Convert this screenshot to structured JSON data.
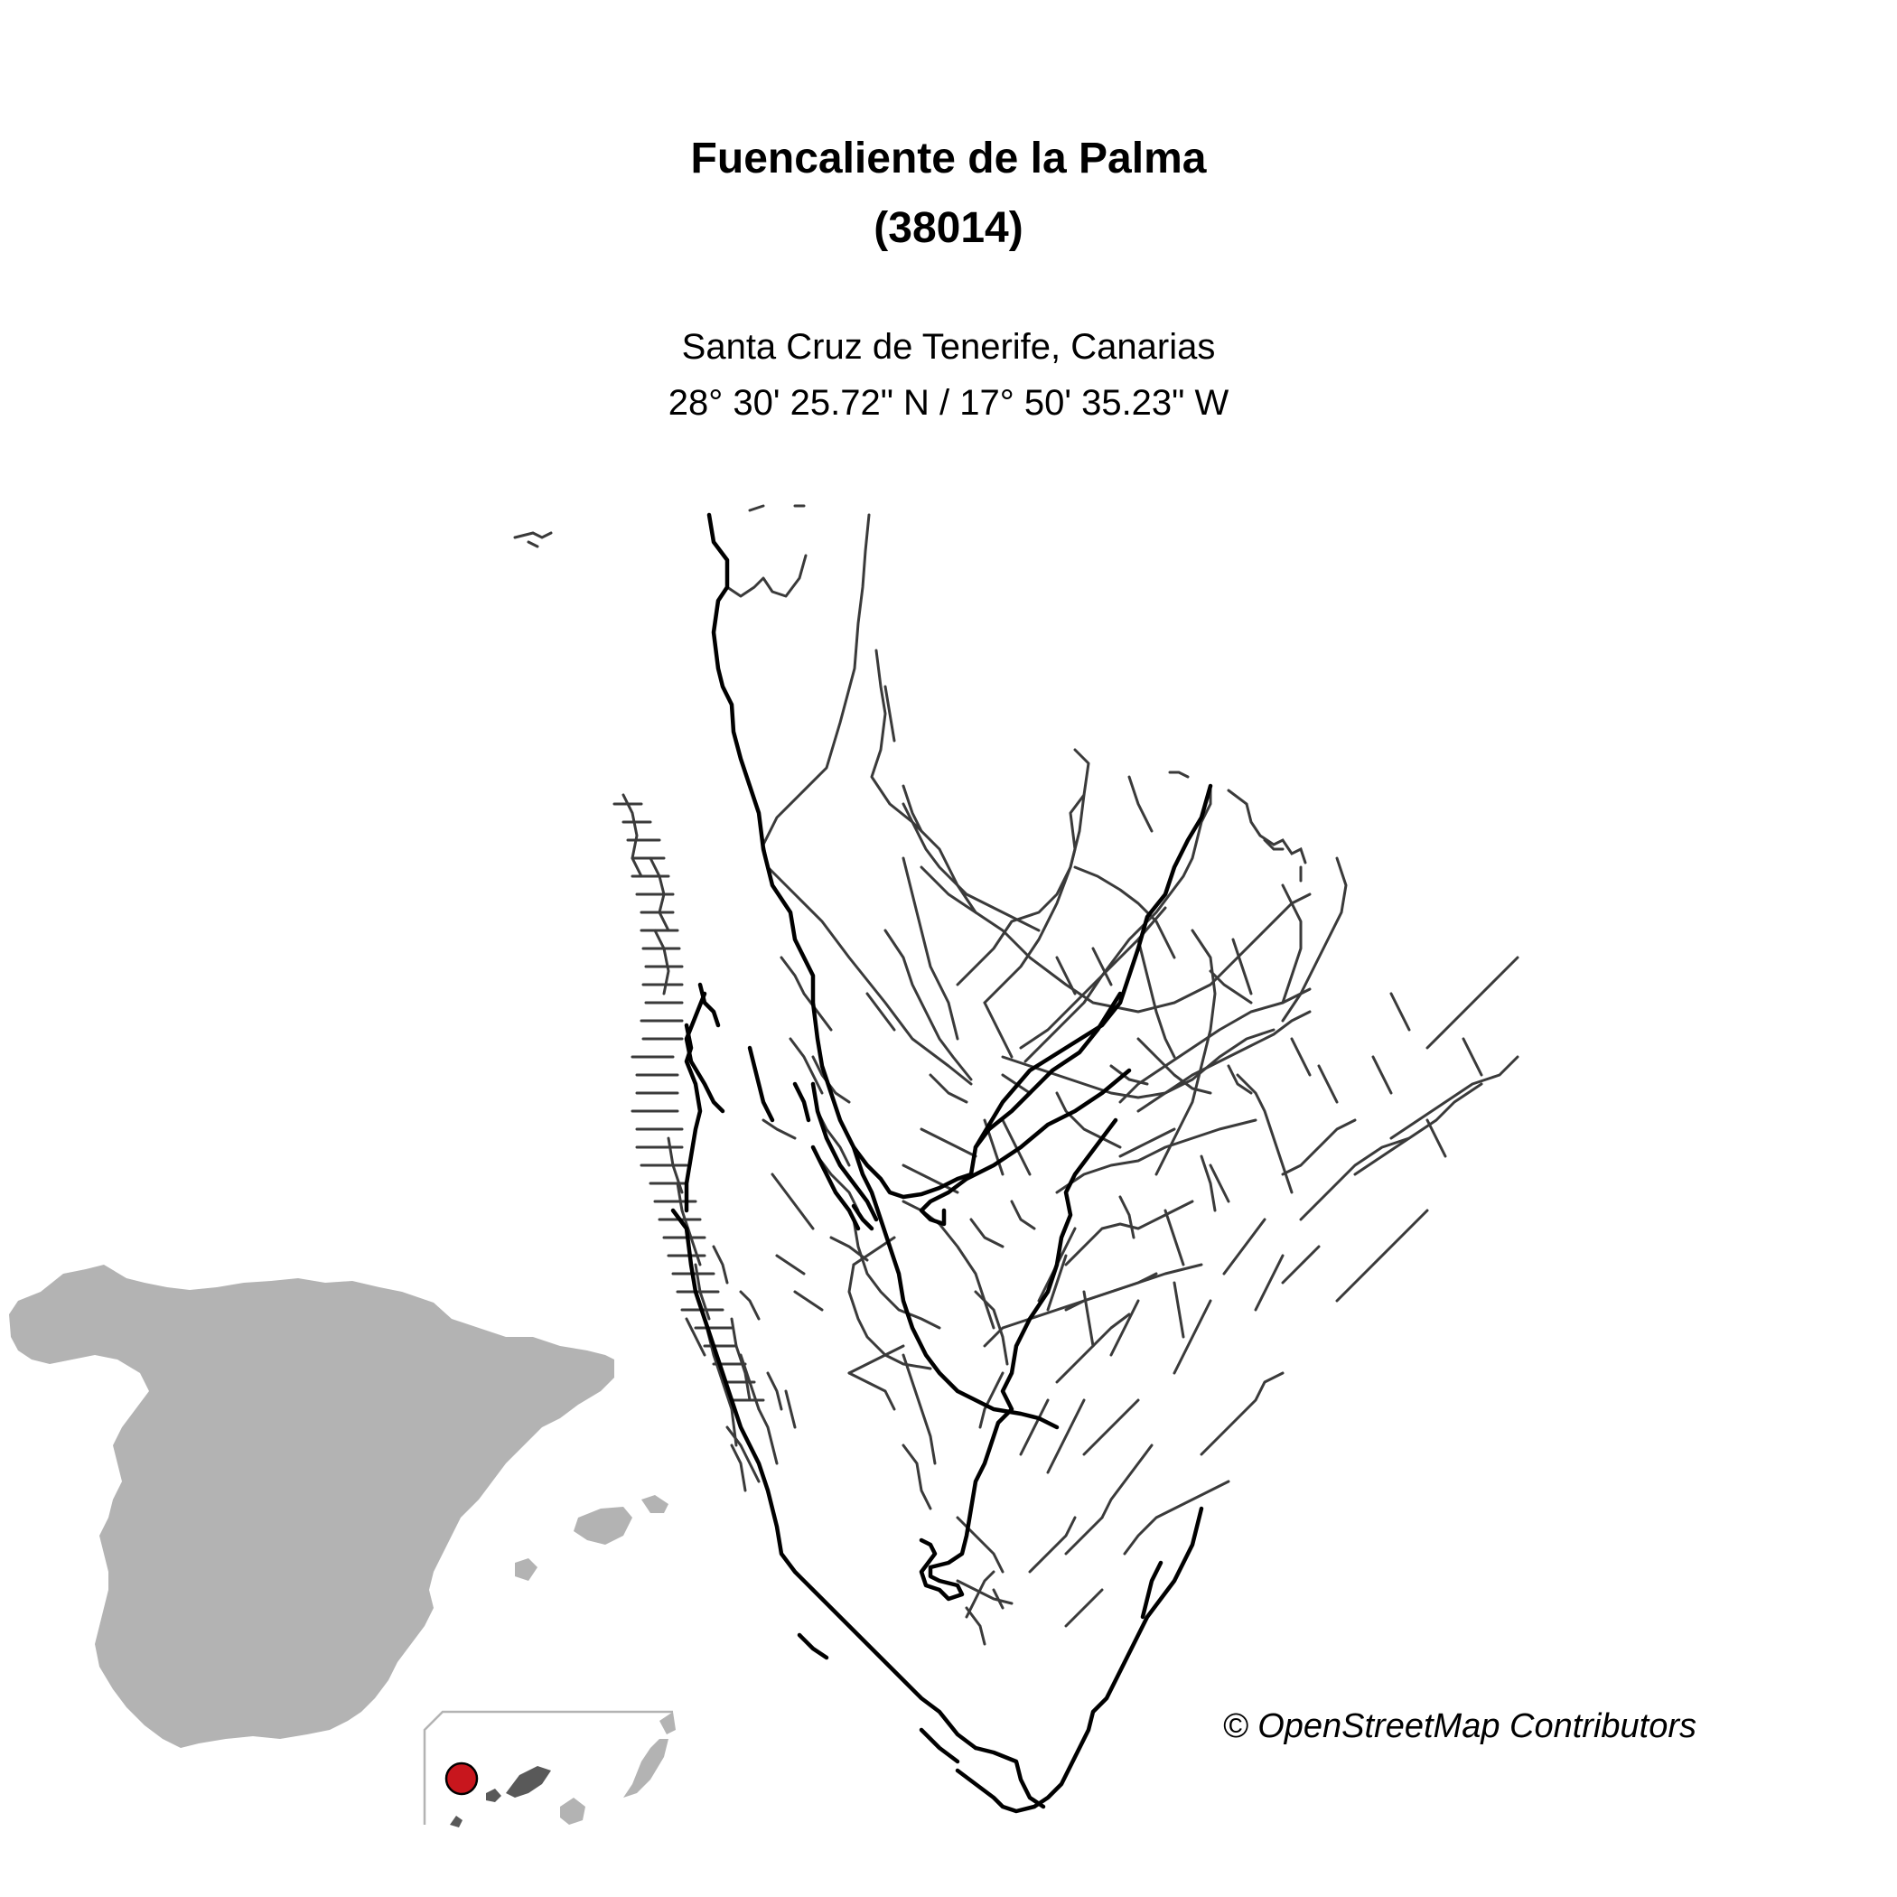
{
  "title": {
    "line1": "Fuencaliente de la Palma",
    "line2": "(38014)"
  },
  "subtitle": {
    "region": "Santa Cruz de Tenerife, Canarias",
    "coordinates": "28° 30' 25.72\" N / 17° 50' 35.23\" W"
  },
  "attribution": "© OpenStreetMap Contributors",
  "colors": {
    "major_road": "#000000",
    "minor_road": "#3a3a3a",
    "inset_land": "#b3b3b3",
    "inset_islands_dark": "#595959",
    "marker_fill": "#c8161d",
    "marker_stroke": "#000000",
    "inset_frame": "#b3b3b3"
  },
  "icons": {
    "location_marker": "location-marker-icon"
  }
}
